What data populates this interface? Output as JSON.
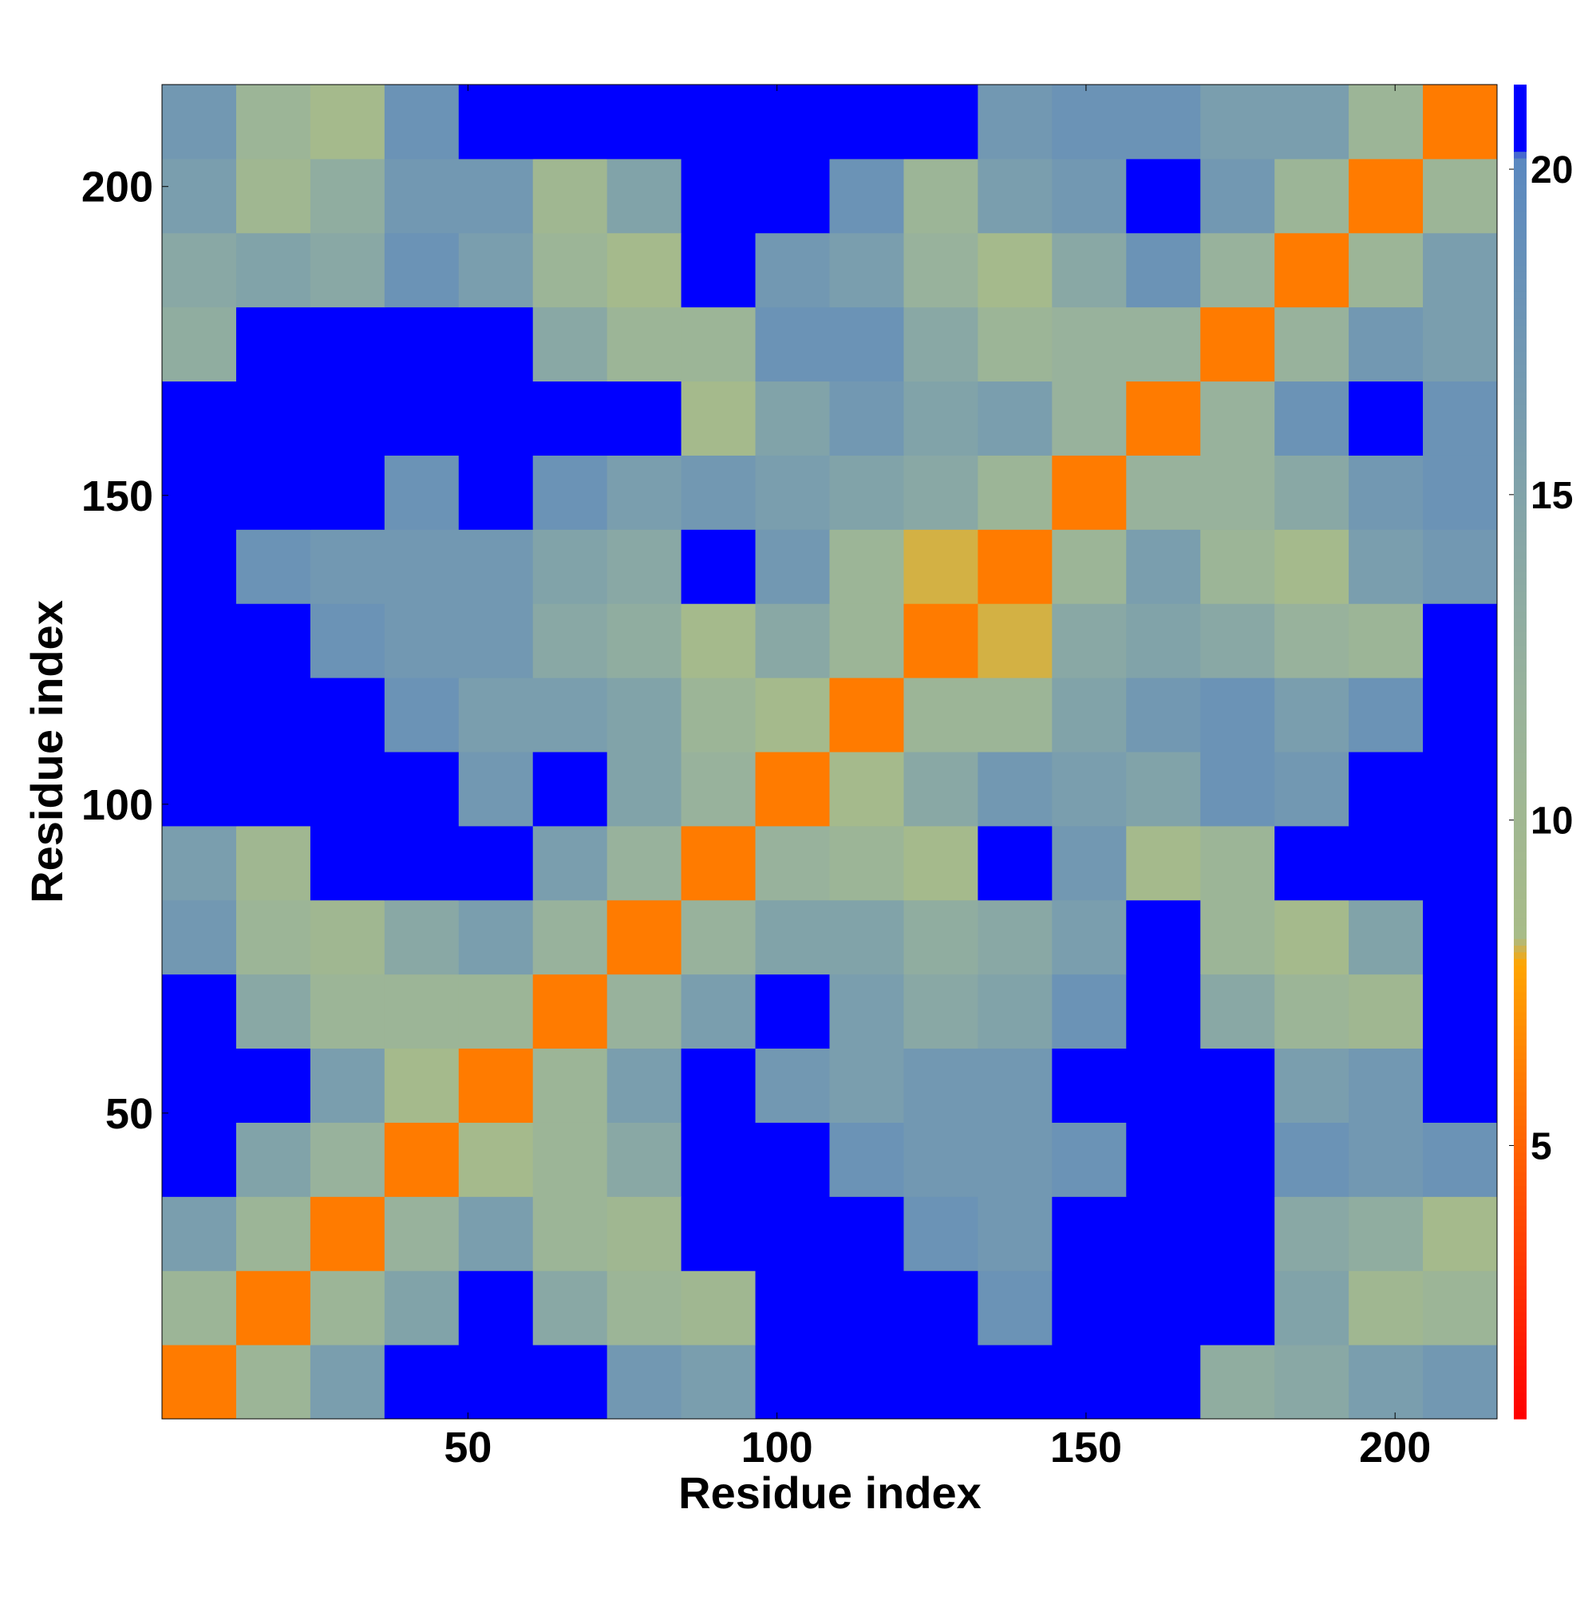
{
  "chart_data": {
    "type": "heatmap",
    "xlabel": "Residue index",
    "ylabel": "Residue index",
    "xlim": [
      0.5,
      216.5
    ],
    "ylim": [
      0.5,
      216.5
    ],
    "xticks": [
      50,
      100,
      150,
      200
    ],
    "yticks": [
      50,
      100,
      150,
      200
    ],
    "z": [
      [
        6,
        11,
        16,
        22,
        22,
        22,
        17,
        16,
        22,
        22,
        22,
        22,
        22,
        22,
        13,
        14,
        16,
        17
      ],
      [
        11,
        6,
        11,
        15,
        22,
        14,
        11,
        10,
        22,
        22,
        22,
        18,
        22,
        22,
        22,
        15,
        10,
        11
      ],
      [
        16,
        11,
        6,
        12,
        16,
        11,
        10,
        22,
        22,
        22,
        18,
        17,
        22,
        22,
        22,
        14,
        13,
        9
      ],
      [
        22,
        15,
        12,
        6,
        9,
        11,
        14,
        22,
        22,
        18,
        17,
        17,
        18,
        22,
        22,
        18,
        17,
        18
      ],
      [
        22,
        22,
        16,
        9,
        6,
        11,
        16,
        22,
        17,
        16,
        17,
        17,
        22,
        22,
        22,
        16,
        17,
        22
      ],
      [
        22,
        14,
        11,
        11,
        11,
        6,
        12,
        16,
        22,
        16,
        14,
        15,
        18,
        22,
        14,
        11,
        10,
        22
      ],
      [
        17,
        11,
        10,
        14,
        16,
        12,
        6,
        12,
        15,
        15,
        13,
        14,
        16,
        22,
        11,
        9,
        15,
        22
      ],
      [
        16,
        10,
        22,
        22,
        22,
        16,
        12,
        6,
        12,
        11,
        9,
        22,
        17,
        9,
        11,
        22,
        22,
        22
      ],
      [
        22,
        22,
        22,
        22,
        17,
        22,
        15,
        12,
        6,
        9,
        14,
        17,
        16,
        15,
        18,
        17,
        22,
        22
      ],
      [
        22,
        22,
        22,
        18,
        16,
        16,
        15,
        11,
        9,
        6,
        11,
        11,
        15,
        17,
        18,
        16,
        18,
        22
      ],
      [
        22,
        22,
        18,
        17,
        17,
        14,
        13,
        9,
        14,
        11,
        6,
        8,
        14,
        15,
        14,
        12,
        11,
        22
      ],
      [
        22,
        18,
        17,
        17,
        17,
        15,
        14,
        22,
        17,
        11,
        8,
        6,
        11,
        16,
        11,
        9,
        16,
        17
      ],
      [
        22,
        22,
        22,
        18,
        22,
        18,
        16,
        17,
        16,
        15,
        14,
        11,
        6,
        12,
        12,
        14,
        17,
        18
      ],
      [
        22,
        22,
        22,
        22,
        22,
        22,
        22,
        9,
        15,
        17,
        15,
        16,
        12,
        6,
        12,
        18,
        22,
        18
      ],
      [
        13,
        22,
        22,
        22,
        22,
        14,
        11,
        11,
        18,
        18,
        14,
        11,
        12,
        12,
        6,
        12,
        17,
        16
      ],
      [
        14,
        15,
        14,
        18,
        16,
        11,
        9,
        22,
        17,
        16,
        12,
        9,
        14,
        18,
        12,
        6,
        11,
        16
      ],
      [
        16,
        10,
        13,
        17,
        17,
        10,
        15,
        22,
        22,
        18,
        11,
        16,
        17,
        22,
        17,
        11,
        6,
        11
      ],
      [
        17,
        11,
        9,
        18,
        22,
        22,
        22,
        22,
        22,
        22,
        22,
        17,
        18,
        18,
        16,
        16,
        11,
        6
      ]
    ],
    "colorbar": {
      "lim": [
        0.8,
        21.3
      ],
      "ticks": [
        5,
        10,
        15,
        20
      ]
    },
    "colorscale": [
      [
        0.8,
        "#ff0000"
      ],
      [
        7.8,
        "#ffa500"
      ],
      [
        8.2,
        "#a8bc88"
      ],
      [
        12,
        "#98b29c"
      ],
      [
        20.2,
        "#5a88c0"
      ],
      [
        20.3,
        "#0000ff"
      ],
      [
        21.3,
        "#0000ff"
      ]
    ]
  }
}
